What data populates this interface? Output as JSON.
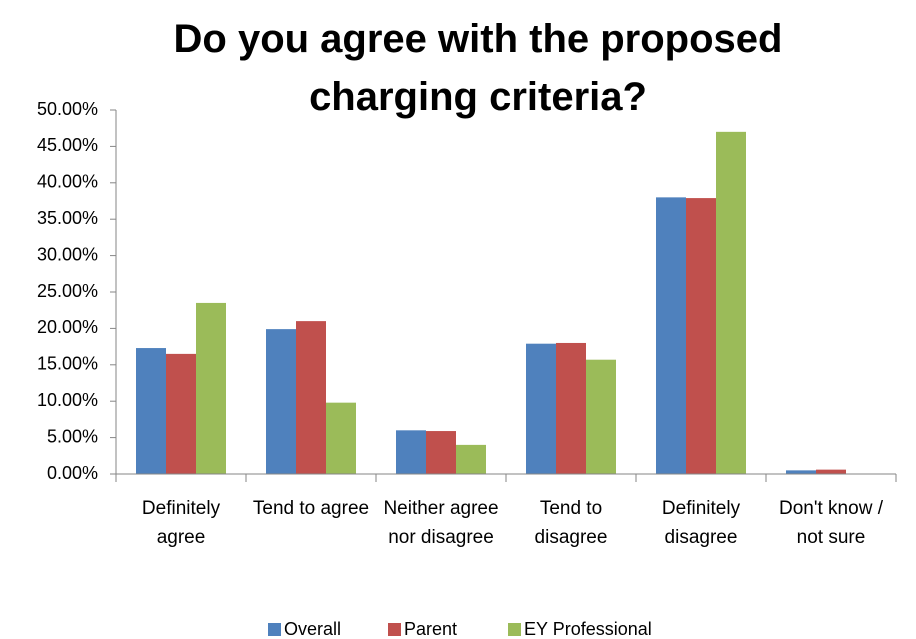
{
  "chart_data": {
    "type": "bar",
    "title": "Do you agree with the proposed charging criteria?",
    "categories": [
      "Definitely agree",
      "Tend to agree",
      "Neither agree nor disagree",
      "Tend to disagree",
      "Definitely disagree",
      "Don't know / not sure"
    ],
    "series": [
      {
        "name": "Overall",
        "color": "#4f81bd",
        "values": [
          17.3,
          19.9,
          6.0,
          17.9,
          38.0,
          0.5
        ]
      },
      {
        "name": "Parent",
        "color": "#c0504d",
        "values": [
          16.5,
          21.0,
          5.9,
          18.0,
          37.9,
          0.6
        ]
      },
      {
        "name": "EY Professional",
        "color": "#9bbb59",
        "values": [
          23.5,
          9.8,
          4.0,
          15.7,
          47.0,
          0
        ]
      }
    ],
    "ylim": [
      0,
      50
    ],
    "yticks": [
      {
        "value": 0,
        "label": "0.00%"
      },
      {
        "value": 5,
        "label": "5.00%"
      },
      {
        "value": 10,
        "label": "10.00%"
      },
      {
        "value": 15,
        "label": "15.00%"
      },
      {
        "value": 20,
        "label": "20.00%"
      },
      {
        "value": 25,
        "label": "25.00%"
      },
      {
        "value": 30,
        "label": "30.00%"
      },
      {
        "value": 35,
        "label": "35.00%"
      },
      {
        "value": 40,
        "label": "40.00%"
      },
      {
        "value": 45,
        "label": "45.00%"
      },
      {
        "value": 50,
        "label": "50.00%"
      }
    ],
    "grid": false,
    "legend": "bottom"
  }
}
